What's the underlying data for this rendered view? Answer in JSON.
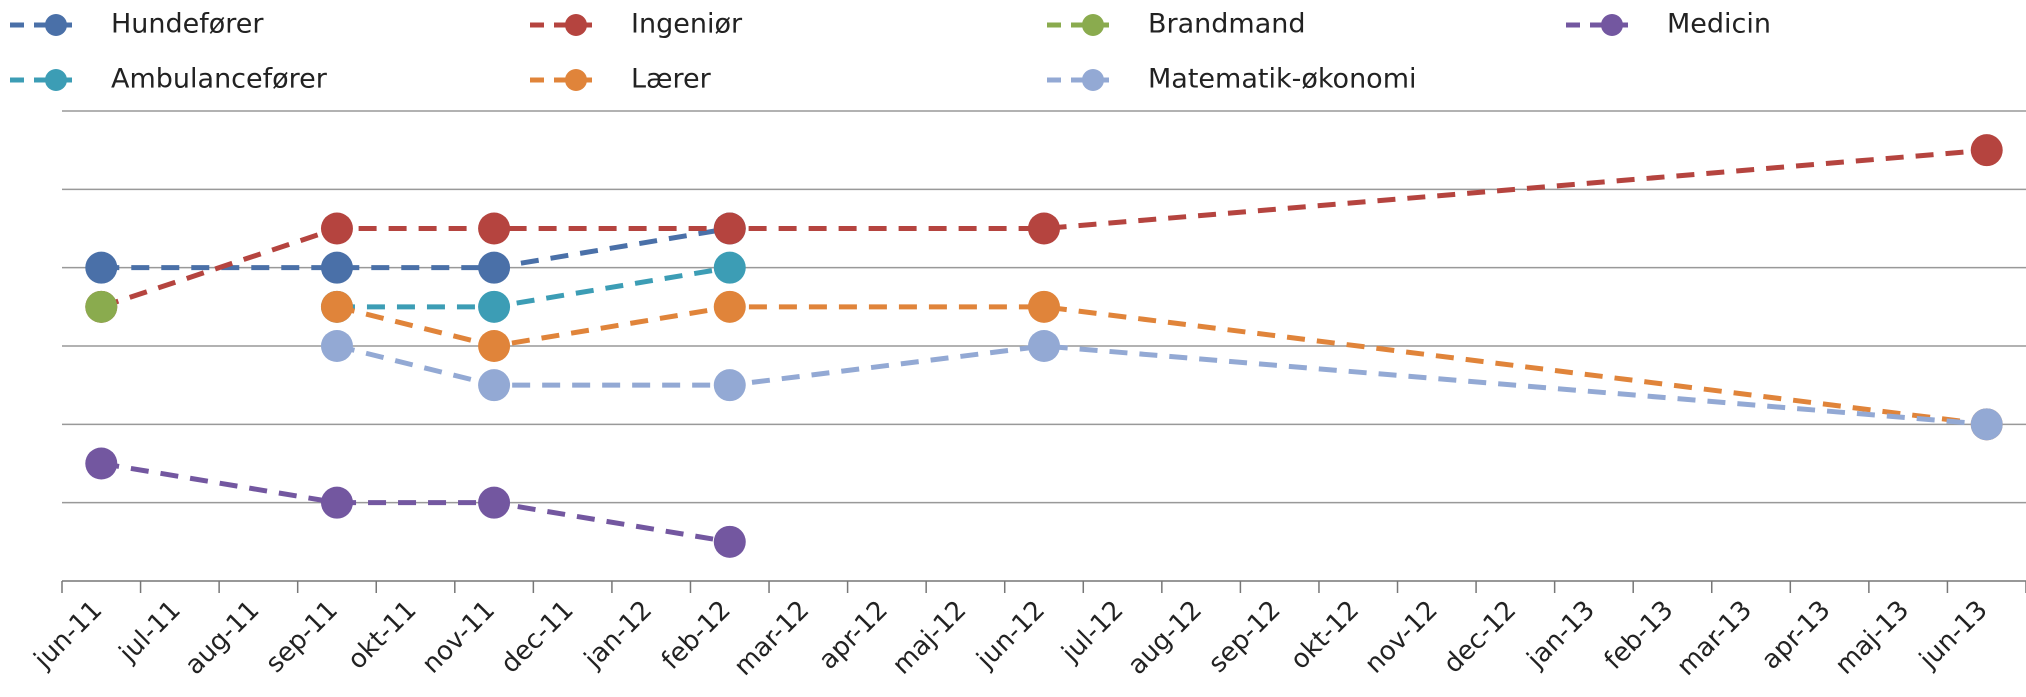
{
  "chart_data": {
    "type": "line",
    "categories": [
      "jun-11",
      "jul-11",
      "aug-11",
      "sep-11",
      "okt-11",
      "nov-11",
      "dec-11",
      "jan-12",
      "feb-12",
      "mar-12",
      "apr-12",
      "maj-12",
      "jun-12",
      "jul-12",
      "aug-12",
      "sep-12",
      "okt-12",
      "nov-12",
      "dec-12",
      "jan-13",
      "feb-13",
      "mar-13",
      "apr-13",
      "maj-13",
      "jun-13"
    ],
    "ylim": [
      0,
      6
    ],
    "yticks": [
      0,
      1,
      2,
      3,
      4,
      5,
      6
    ],
    "grid": true,
    "series": [
      {
        "name": "Hundefører",
        "color": "#4a70a8",
        "x": [
          "jun-11",
          "sep-11",
          "nov-11",
          "feb-12"
        ],
        "values": [
          4,
          4,
          4,
          4.5
        ]
      },
      {
        "name": "Ingeniør",
        "color": "#b5443f",
        "x": [
          "jun-11",
          "sep-11",
          "nov-11",
          "feb-12",
          "jun-12",
          "jun-13"
        ],
        "values": [
          3.5,
          4.5,
          4.5,
          4.5,
          4.5,
          5.5
        ]
      },
      {
        "name": "Brandmand",
        "color": "#8aab4e",
        "x": [
          "jun-11"
        ],
        "values": [
          3.5
        ]
      },
      {
        "name": "Medicin",
        "color": "#7357a0",
        "x": [
          "jun-11",
          "sep-11",
          "nov-11",
          "feb-12"
        ],
        "values": [
          1.5,
          1,
          1,
          0.5
        ]
      },
      {
        "name": "Ambulancefører",
        "color": "#3c9db5",
        "x": [
          "sep-11",
          "nov-11",
          "feb-12"
        ],
        "values": [
          3.5,
          3.5,
          4
        ]
      },
      {
        "name": "Lærer",
        "color": "#e0843a",
        "x": [
          "sep-11",
          "nov-11",
          "feb-12",
          "jun-12",
          "jun-13"
        ],
        "values": [
          3.5,
          3,
          3.5,
          3.5,
          2
        ]
      },
      {
        "name": "Matematik-økonomi",
        "color": "#93a9d4",
        "x": [
          "sep-11",
          "nov-11",
          "feb-12",
          "jun-12",
          "jun-13"
        ],
        "values": [
          3,
          2.5,
          2.5,
          3,
          2
        ]
      }
    ]
  }
}
